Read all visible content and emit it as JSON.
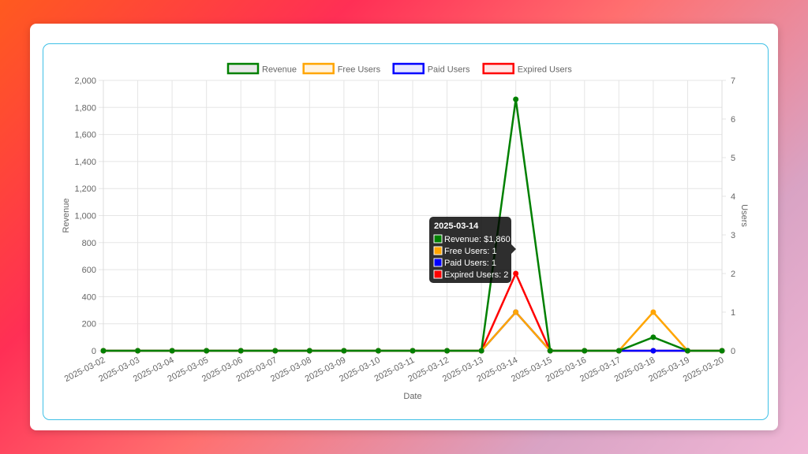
{
  "chart_data": {
    "type": "line",
    "categories": [
      "2025-03-02",
      "2025-03-03",
      "2025-03-04",
      "2025-03-05",
      "2025-03-06",
      "2025-03-07",
      "2025-03-08",
      "2025-03-09",
      "2025-03-10",
      "2025-03-11",
      "2025-03-12",
      "2025-03-13",
      "2025-03-14",
      "2025-03-15",
      "2025-03-16",
      "2025-03-17",
      "2025-03-18",
      "2025-03-19",
      "2025-03-20"
    ],
    "xlabel": "Date",
    "ylabel_left": "Revenue",
    "ylabel_right": "Users",
    "ylim_left": [
      0,
      2000
    ],
    "ylim_right": [
      0,
      7
    ],
    "yticks_left": [
      "0",
      "200",
      "400",
      "600",
      "800",
      "1,000",
      "1,200",
      "1,400",
      "1,600",
      "1,800",
      "2,000"
    ],
    "yticks_right": [
      "0",
      "1",
      "2",
      "3",
      "4",
      "5",
      "6",
      "7"
    ],
    "grid": true,
    "legend_position": "top",
    "series": [
      {
        "name": "Revenue",
        "axis": "left",
        "color": "#008000",
        "fill": "#e8e8e8",
        "values": [
          0,
          0,
          0,
          0,
          0,
          0,
          0,
          0,
          0,
          0,
          0,
          0,
          1860,
          0,
          0,
          0,
          100,
          0,
          0
        ]
      },
      {
        "name": "Free Users",
        "axis": "right",
        "color": "#ffa500",
        "fill": "#fff3e0",
        "values": [
          0,
          0,
          0,
          0,
          0,
          0,
          0,
          0,
          0,
          0,
          0,
          0,
          1,
          0,
          0,
          0,
          1,
          0,
          0
        ]
      },
      {
        "name": "Paid Users",
        "axis": "right",
        "color": "#0000ff",
        "fill": "#e6e6ff",
        "values": [
          0,
          0,
          0,
          0,
          0,
          0,
          0,
          0,
          0,
          0,
          0,
          0,
          1,
          0,
          0,
          0,
          0,
          0,
          0
        ]
      },
      {
        "name": "Expired Users",
        "axis": "right",
        "color": "#ff0000",
        "fill": "#ffe6e6",
        "values": [
          0,
          0,
          0,
          0,
          0,
          0,
          0,
          0,
          0,
          0,
          0,
          0,
          2,
          0,
          0,
          0,
          0,
          0,
          0
        ]
      }
    ],
    "tooltip": {
      "category_index": 12,
      "title": "2025-03-14",
      "lines": [
        "Revenue: $1,860",
        "Free Users: 1",
        "Paid Users: 1",
        "Expired Users: 2"
      ]
    }
  }
}
